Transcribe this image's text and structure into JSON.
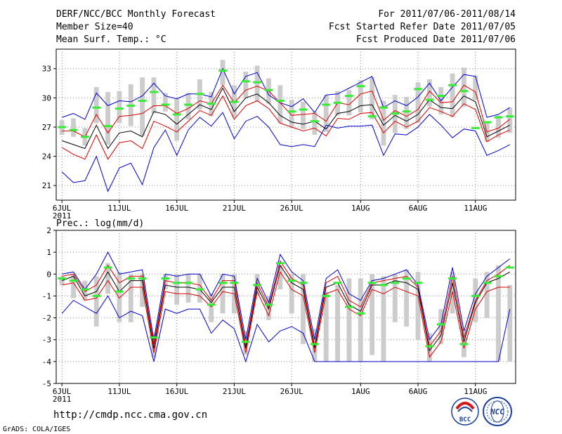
{
  "header": {
    "title": "DERF/NCC/BCC Monthly Forecast",
    "member_size": "Member Size=40",
    "variable": "Mean Surf. Temp.: °C",
    "period": "For 2011/07/06-2011/08/14",
    "refer_date": "Fcst Started Refer Date 2011/07/05",
    "produced_date": "Fcst Produced Date 2011/07/06"
  },
  "footer": {
    "url": "http://cmdp.ncc.cma.gov.cn",
    "credit": "GrADS: COLA/IGES",
    "logo_bcc": "BCC",
    "logo_ncc": "NCC"
  },
  "colors": {
    "max_line": "#0000cc",
    "min_line": "#0000cc",
    "upper_lower": "#dd0000",
    "mean": "#000000",
    "marker": "#33ee33",
    "bar": "#cccccc",
    "grid": "#888888"
  },
  "chart_data": [
    {
      "type": "line",
      "title": "Mean Surf. Temp.: °C",
      "xlabel": "",
      "ylabel": "Mean Surf. Temp. (°C)",
      "days": 40,
      "year_label": "2011",
      "x_tick_labels": [
        "6JUL",
        "11JUL",
        "16JUL",
        "21JUL",
        "26JUL",
        "1AUG",
        "6AUG",
        "11AUG"
      ],
      "x_tick_days": [
        0,
        5,
        10,
        15,
        20,
        26,
        31,
        36
      ],
      "yticks": [
        21,
        24,
        27,
        30,
        33
      ],
      "ylim": [
        19.5,
        35
      ],
      "series": [
        {
          "name": "max",
          "values": [
            28,
            28.4,
            27.8,
            30.5,
            29.2,
            29.7,
            29.6,
            30.2,
            31.5,
            30.2,
            29.9,
            30.4,
            30.4,
            30.1,
            33,
            30.4,
            32.2,
            32.6,
            30.3,
            29.5,
            29.1,
            29.9,
            28.5,
            30.3,
            30.4,
            31,
            31.6,
            32.2,
            29,
            29.7,
            29.2,
            30.1,
            31.5,
            29.7,
            31.1,
            32.4,
            32.2,
            28,
            28.3,
            29
          ]
        },
        {
          "name": "upper",
          "values": [
            26.6,
            26.6,
            26,
            28.3,
            26.4,
            28.1,
            28.2,
            28.4,
            29.2,
            29.2,
            28.4,
            28.9,
            29.7,
            29.4,
            31.3,
            29.5,
            30.8,
            31.2,
            30.7,
            29.5,
            28.2,
            28.3,
            28.4,
            27.6,
            29.5,
            29.3,
            30.4,
            30.7,
            27.7,
            28.7,
            28.1,
            28.8,
            30.7,
            29.5,
            29.6,
            31.3,
            30.6,
            26.5,
            26.9,
            27.8
          ]
        },
        {
          "name": "mean",
          "values": [
            25.6,
            25.2,
            24.8,
            27.2,
            24.8,
            26.4,
            26.6,
            26,
            28.6,
            28.3,
            27.3,
            28.3,
            29.3,
            28.8,
            31,
            28.6,
            30,
            30.4,
            29.5,
            28.2,
            27.5,
            27.3,
            27.6,
            26.8,
            28.4,
            28.6,
            29.2,
            29.3,
            27.2,
            28.2,
            27.6,
            28.3,
            29.8,
            29,
            28.9,
            30.2,
            29.6,
            26,
            26.6,
            27.2
          ]
        },
        {
          "name": "lower",
          "values": [
            24.9,
            24.2,
            23.7,
            26.2,
            23.7,
            25.4,
            25.6,
            24.8,
            27.6,
            27.1,
            26.5,
            27.6,
            28.7,
            28.2,
            30.2,
            27.8,
            29.2,
            29.7,
            28.9,
            27.4,
            27,
            26.6,
            26.9,
            26.1,
            27.9,
            27.8,
            28.4,
            28.5,
            26.4,
            27.6,
            27,
            27.6,
            29,
            28.6,
            28.1,
            29.4,
            28.8,
            25.5,
            26.2,
            26.7
          ]
        },
        {
          "name": "min",
          "values": [
            22.4,
            21.3,
            21.5,
            24,
            20.4,
            22.8,
            23.3,
            21.1,
            24.9,
            26.7,
            24.1,
            26.7,
            28,
            27.1,
            28.5,
            25.8,
            27.6,
            28.1,
            27,
            25.2,
            25,
            25.2,
            25,
            27.2,
            26.9,
            27.1,
            27.1,
            27.2,
            24.1,
            26.3,
            26.2,
            27,
            28.3,
            27.2,
            25.9,
            26.8,
            26.6,
            24.1,
            24.6,
            25.2
          ]
        },
        {
          "name": "ensemble",
          "values": [
            27,
            26.7,
            26,
            29,
            27.1,
            28.9,
            29.2,
            29.7,
            30.6,
            29.3,
            28.3,
            29.3,
            30.4,
            29.4,
            32.8,
            29.6,
            31.7,
            31.6,
            30.8,
            29.7,
            28.6,
            28.8,
            27.6,
            29.3,
            29.5,
            30.2,
            31.2,
            28.1,
            29,
            28.4,
            28.6,
            30.9,
            29.8,
            30.2,
            31.3,
            30.7,
            26.9,
            27.5,
            28,
            28.1
          ]
        }
      ],
      "bars_low": [
        26.2,
        26,
        25.1,
        27.4,
        25.2,
        27.4,
        27.1,
        26.1,
        28.4,
        28.6,
        25.6,
        27.8,
        28.8,
        28.1,
        31.3,
        28,
        30,
        29.6,
        29.4,
        27.4,
        26.9,
        26.8,
        26.2,
        26.5,
        28.2,
        28.2,
        28.5,
        27.8,
        25.1,
        26.4,
        26.8,
        27.4,
        29.1,
        28.3,
        28,
        29.1,
        29.8,
        25.5,
        25.9,
        26.4
      ],
      "bars_high": [
        27.7,
        27.9,
        26.9,
        31.1,
        30.6,
        30.7,
        31.4,
        32.1,
        32.1,
        30.5,
        29.9,
        30.5,
        31.9,
        30.6,
        33.9,
        31.3,
        32.7,
        33.3,
        32,
        31.3,
        29.8,
        29.6,
        28.6,
        30.3,
        30.7,
        30.8,
        31.8,
        32.1,
        29.7,
        30.3,
        30.1,
        31.6,
        31.9,
        31.1,
        32.5,
        33.1,
        32.3,
        27.6,
        28.2,
        29
      ]
    },
    {
      "type": "line",
      "title": "Prec.: log(mm/d)",
      "xlabel": "",
      "ylabel": "Prec. log(mm/d)",
      "days": 40,
      "year_label": "2011",
      "x_tick_labels": [
        "6JUL",
        "11JUL",
        "16JUL",
        "21JUL",
        "26JUL",
        "1AUG",
        "6AUG",
        "11AUG"
      ],
      "x_tick_days": [
        0,
        5,
        10,
        15,
        20,
        26,
        31,
        36
      ],
      "yticks": [
        -5,
        -4,
        -3,
        -2,
        -1,
        0,
        1,
        2
      ],
      "ylim": [
        -5,
        2
      ],
      "series": [
        {
          "name": "max",
          "values": [
            0,
            0.1,
            -0.7,
            0,
            1,
            0,
            0.1,
            0.2,
            -3,
            0,
            -0.1,
            0,
            0,
            -1,
            0,
            -0.1,
            -3,
            -0.2,
            -1.3,
            0.9,
            0.1,
            -0.3,
            -3,
            -0.2,
            0.2,
            -0.9,
            -1.2,
            -0.3,
            -0.2,
            0,
            0.2,
            -0.5,
            -3,
            -2.3,
            0.3,
            -2.6,
            -0.9,
            -0.1,
            0.3,
            0.7
          ]
        },
        {
          "name": "upper",
          "values": [
            -0.1,
            0,
            -0.8,
            -0.5,
            0.4,
            -0.4,
            -0.1,
            -0.1,
            -3.2,
            -0.3,
            -0.4,
            -0.4,
            -0.5,
            -1.2,
            -0.3,
            -0.3,
            -3.3,
            -0.4,
            -1.5,
            0.6,
            -0.2,
            -0.5,
            -3.3,
            -0.4,
            -0.1,
            -1.2,
            -1.5,
            -0.4,
            -0.3,
            -0.2,
            -0.1,
            -0.6,
            -3.3,
            -2.6,
            -0.1,
            -2.9,
            -1.2,
            -0.3,
            0,
            0.4
          ]
        },
        {
          "name": "mean",
          "values": [
            -0.3,
            -0.1,
            -1,
            -0.8,
            0.1,
            -0.8,
            -0.3,
            -0.3,
            -3.4,
            -0.5,
            -0.6,
            -0.6,
            -0.7,
            -1.3,
            -0.6,
            -0.6,
            -3.4,
            -0.6,
            -1.6,
            0.4,
            -0.4,
            -0.7,
            -3.4,
            -0.6,
            -0.4,
            -1.4,
            -1.7,
            -0.5,
            -0.5,
            -0.3,
            -0.4,
            -0.7,
            -3.5,
            -2.8,
            -0.4,
            -3.1,
            -1.3,
            -0.4,
            -0.2,
            0.1
          ]
        },
        {
          "name": "lower",
          "values": [
            -0.5,
            -0.4,
            -1.2,
            -1.1,
            -0.3,
            -1.1,
            -0.6,
            -0.6,
            -3.6,
            -0.8,
            -0.9,
            -0.9,
            -1,
            -1.5,
            -0.8,
            -0.9,
            -3.6,
            -0.8,
            -1.9,
            0.1,
            -0.7,
            -1,
            -3.6,
            -0.9,
            -0.7,
            -1.6,
            -1.9,
            -0.7,
            -0.9,
            -0.6,
            -0.8,
            -1,
            -3.8,
            -3.1,
            -0.8,
            -3.4,
            -1.6,
            -0.8,
            -0.6,
            -0.6
          ]
        },
        {
          "name": "min",
          "values": [
            -1.8,
            -1.2,
            -1.5,
            -1.8,
            -1,
            -2,
            -1.7,
            -1.9,
            -4,
            -1.6,
            -1.8,
            -1.6,
            -1.6,
            -2.7,
            -2.1,
            -2.5,
            -4,
            -2.3,
            -3.1,
            -2.6,
            -2.4,
            -2.7,
            -4,
            -4,
            -4,
            -4,
            -4,
            -4,
            -4,
            -4,
            -4,
            -4,
            -4,
            -4,
            -4,
            -4,
            -4,
            -4,
            -4,
            -1.6
          ]
        },
        {
          "name": "ensemble",
          "values": [
            -0.2,
            -0.3,
            -0.7,
            -1,
            0.3,
            -0.8,
            -0.2,
            -0.2,
            -2.9,
            -0.2,
            -0.4,
            -0.4,
            -0.7,
            -1.4,
            -0.4,
            -0.4,
            -3.1,
            -0.5,
            -1.4,
            0.5,
            -0.3,
            -0.4,
            -3.2,
            -1,
            -0.4,
            -1.5,
            -1.8,
            -0.4,
            -0.5,
            -0.4,
            -0.2,
            -0.4,
            -3.3,
            -2.3,
            -0.2,
            -3.2,
            -1,
            -0.4,
            -0.1,
            0.3
          ]
        }
      ],
      "bars_low": [
        -0.5,
        -1.1,
        -1.2,
        -2.4,
        -0.9,
        -2.2,
        -2.2,
        -1.5,
        -3.8,
        -0.7,
        -1.4,
        -1.3,
        -1.3,
        -2.2,
        -1.8,
        -1.8,
        -3.7,
        -1,
        -2.1,
        -0.7,
        -1.8,
        -3.2,
        -4,
        -4,
        -4,
        -4,
        -4,
        -3.7,
        -4,
        -2.2,
        -2.4,
        -3,
        -4,
        -3.2,
        -1.8,
        -3.8,
        -2.2,
        -2,
        -4,
        -4
      ],
      "bars_high": [
        -0.1,
        0,
        -0.3,
        -0.1,
        0.5,
        0.1,
        0,
        0,
        -2.7,
        0,
        0,
        0,
        0,
        -0.9,
        0,
        0,
        -2.6,
        0,
        -1,
        0.4,
        0,
        0,
        -2.5,
        -0.8,
        -0.5,
        -0.2,
        -0.2,
        0,
        -0.1,
        0,
        0.2,
        0.1,
        -2.7,
        -1.6,
        0.1,
        -2.5,
        -0.2,
        0.1,
        0.4,
        -0.5
      ]
    }
  ]
}
